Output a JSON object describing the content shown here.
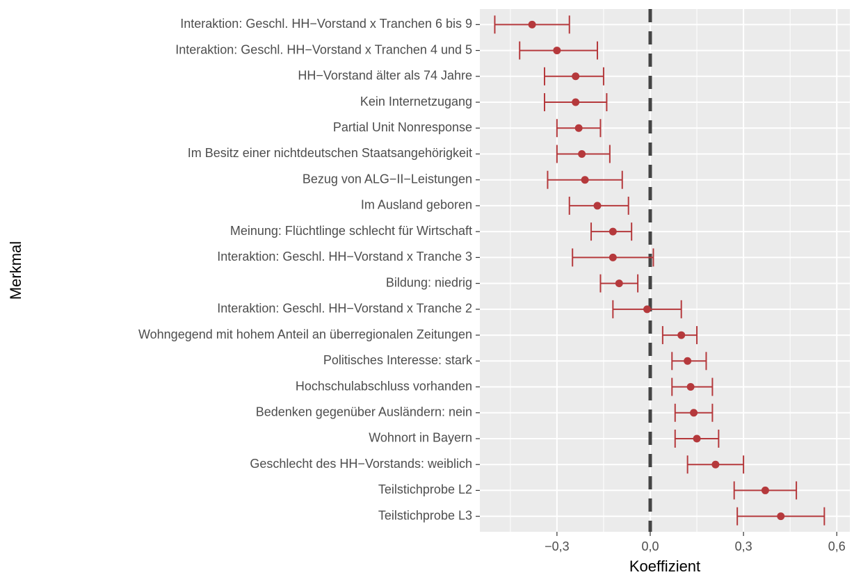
{
  "chart_data": {
    "type": "errorbar",
    "xlabel": "Koeffizient",
    "ylabel": "Merkmal",
    "categories": [
      "Interaktion: Geschl. HH−Vorstand x Tranchen 6 bis 9",
      "Interaktion: Geschl. HH−Vorstand x Tranchen 4 und 5",
      "HH−Vorstand älter als 74 Jahre",
      "Kein Internetzugang",
      "Partial Unit Nonresponse",
      "Im Besitz einer nichtdeutschen Staatsangehörigkeit",
      "Bezug von ALG−II−Leistungen",
      "Im Ausland geboren",
      "Meinung: Flüchtlinge schlecht für Wirtschaft",
      "Interaktion: Geschl. HH−Vorstand x Tranche 3",
      "Bildung: niedrig",
      "Interaktion: Geschl. HH−Vorstand x Tranche 2",
      "Wohngegend mit hohem Anteil an überregionalen Zeitungen",
      "Politisches Interesse: stark",
      "Hochschulabschluss vorhanden",
      "Bedenken gegenüber Ausländern: nein",
      "Wohnort in Bayern",
      "Geschlecht des HH−Vorstands: weiblich",
      "Teilstichprobe L2",
      "Teilstichprobe L3"
    ],
    "values": [
      -0.38,
      -0.3,
      -0.24,
      -0.24,
      -0.23,
      -0.22,
      -0.21,
      -0.17,
      -0.12,
      -0.12,
      -0.1,
      -0.01,
      0.1,
      0.12,
      0.13,
      0.14,
      0.15,
      0.21,
      0.37,
      0.42
    ],
    "lower": [
      -0.5,
      -0.42,
      -0.34,
      -0.34,
      -0.3,
      -0.3,
      -0.33,
      -0.26,
      -0.19,
      -0.25,
      -0.16,
      -0.12,
      0.04,
      0.07,
      0.07,
      0.08,
      0.08,
      0.12,
      0.27,
      0.28
    ],
    "upper": [
      -0.26,
      -0.17,
      -0.15,
      -0.14,
      -0.16,
      -0.13,
      -0.09,
      -0.07,
      -0.06,
      0.01,
      -0.04,
      0.1,
      0.15,
      0.18,
      0.2,
      0.2,
      0.22,
      0.3,
      0.47,
      0.56
    ],
    "color": "#b5393c",
    "xlim": [
      -0.548,
      0.642
    ],
    "xticks": [
      {
        "value": -0.3,
        "label": "−0,3"
      },
      {
        "value": 0,
        "label": "0,0"
      },
      {
        "value": 0.3,
        "label": "0,3"
      },
      {
        "value": 0.6,
        "label": "0,6"
      }
    ],
    "xminorticks": [
      -0.45,
      -0.15,
      0.15,
      0.45
    ],
    "refline": 0,
    "grid": true
  }
}
